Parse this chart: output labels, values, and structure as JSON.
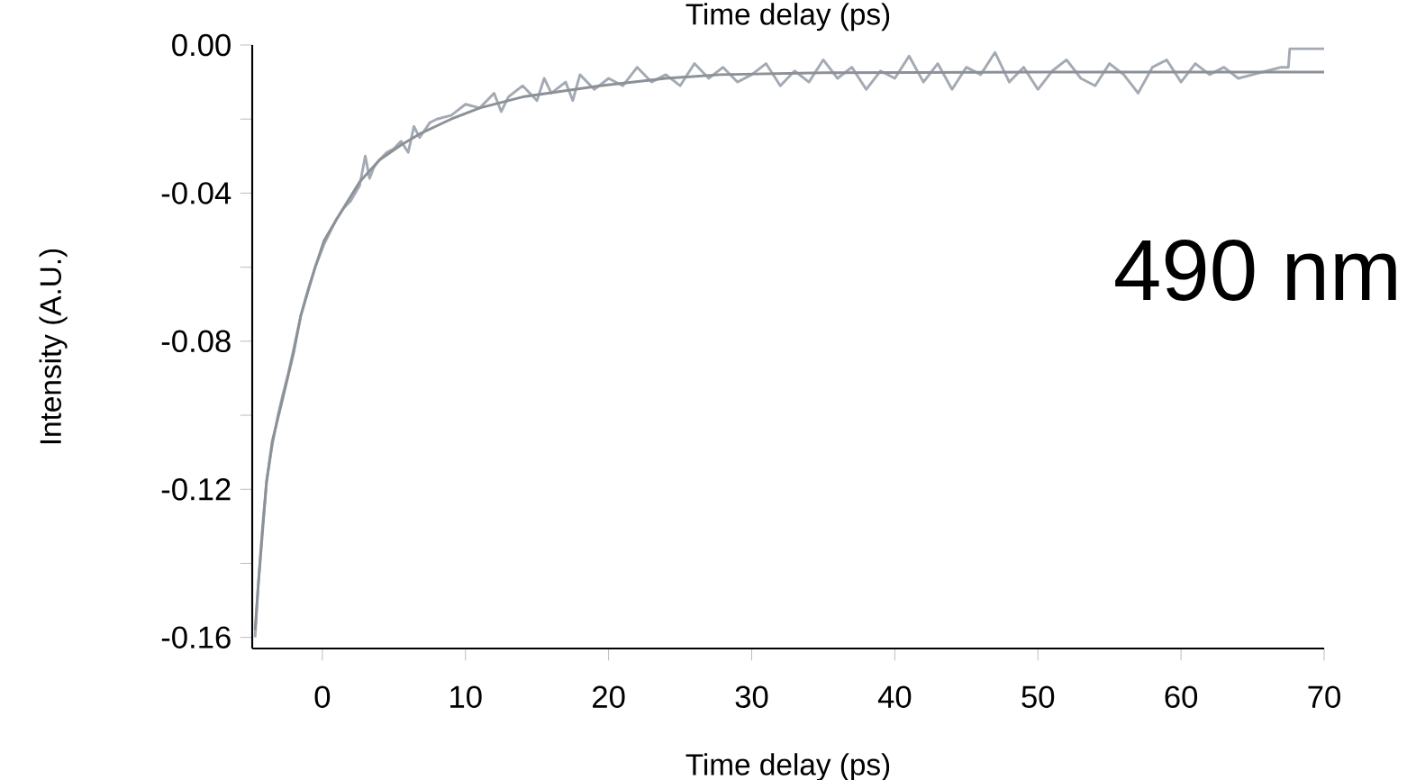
{
  "chart_data": {
    "type": "line",
    "xlabel": "Time delay (ps)",
    "ylabel": "Intensity (A.U.)",
    "annotations": [
      "Time delay (ps)",
      "490 nm"
    ],
    "xlim": [
      -4.9,
      70
    ],
    "ylim": [
      -0.163,
      0.0
    ],
    "xticks": [
      0,
      10,
      20,
      30,
      40,
      50,
      60,
      70
    ],
    "yticks": [
      {
        "value": -0.16,
        "label": "-0.16"
      },
      {
        "value": -0.14,
        "label": null
      },
      {
        "value": -0.12,
        "label": "-0.12"
      },
      {
        "value": -0.1,
        "label": null
      },
      {
        "value": -0.08,
        "label": "-0.08"
      },
      {
        "value": -0.06,
        "label": null
      },
      {
        "value": -0.04,
        "label": "-0.04"
      },
      {
        "value": -0.02,
        "label": null
      },
      {
        "value": 0.0,
        "label": "0.00"
      }
    ],
    "grid": false,
    "marker": "none",
    "line_style": "solid",
    "series": [
      {
        "color": "#a3aab3",
        "x": [
          -4.7,
          -4.5,
          -4.2,
          -3.9,
          -3.5,
          -3.1,
          -2.8,
          -2.4,
          -2,
          -1.5,
          -1,
          -0.5,
          0.1,
          0.6,
          1,
          1.5,
          2,
          2.6,
          3,
          3.3,
          3.6,
          4,
          4.5,
          5,
          5.5,
          6,
          6.4,
          6.8,
          7.5,
          8,
          9,
          10,
          11,
          12,
          12.5,
          13,
          14,
          15,
          15.5,
          16,
          17,
          17.5,
          18,
          19,
          20,
          21,
          22,
          23,
          24,
          25,
          26,
          27,
          28,
          29,
          30,
          31,
          32,
          33,
          34,
          35,
          36,
          37,
          38,
          39,
          40,
          41,
          42,
          43,
          44,
          45,
          46,
          47,
          48,
          49,
          50,
          51,
          52,
          53,
          54,
          55,
          56,
          57,
          58,
          59,
          60,
          61,
          62,
          63,
          64,
          65,
          66,
          67,
          67.5,
          67.6,
          70
        ],
        "values": [
          -0.16,
          -0.147,
          -0.131,
          -0.118,
          -0.108,
          -0.1,
          -0.095,
          -0.089,
          -0.082,
          -0.073,
          -0.066,
          -0.06,
          -0.054,
          -0.05,
          -0.047,
          -0.044,
          -0.042,
          -0.038,
          -0.03,
          -0.036,
          -0.033,
          -0.031,
          -0.029,
          -0.028,
          -0.026,
          -0.029,
          -0.022,
          -0.025,
          -0.021,
          -0.02,
          -0.019,
          -0.016,
          -0.017,
          -0.013,
          -0.018,
          -0.014,
          -0.011,
          -0.015,
          -0.009,
          -0.013,
          -0.01,
          -0.015,
          -0.008,
          -0.012,
          -0.009,
          -0.011,
          -0.006,
          -0.01,
          -0.008,
          -0.011,
          -0.005,
          -0.009,
          -0.006,
          -0.01,
          -0.008,
          -0.005,
          -0.011,
          -0.007,
          -0.01,
          -0.004,
          -0.009,
          -0.006,
          -0.012,
          -0.007,
          -0.009,
          -0.003,
          -0.01,
          -0.005,
          -0.012,
          -0.006,
          -0.008,
          -0.002,
          -0.01,
          -0.006,
          -0.012,
          -0.007,
          -0.004,
          -0.009,
          -0.011,
          -0.005,
          -0.008,
          -0.013,
          -0.006,
          -0.004,
          -0.01,
          -0.005,
          -0.008,
          -0.006,
          -0.009,
          -0.008,
          -0.007,
          -0.006,
          -0.006,
          -0.001,
          -0.001
        ]
      },
      {
        "color": "#8c9198",
        "x": [
          -4.7,
          -4.5,
          -3.9,
          -3.5,
          -2.8,
          -2,
          -1.5,
          -0.5,
          0.1,
          1,
          2.6,
          4,
          5.5,
          6.8,
          9,
          11,
          14,
          19.4,
          24,
          27.8,
          35,
          50,
          70
        ],
        "values": [
          -0.158,
          -0.147,
          -0.118,
          -0.107,
          -0.096,
          -0.083,
          -0.073,
          -0.06,
          -0.053,
          -0.047,
          -0.037,
          -0.031,
          -0.027,
          -0.024,
          -0.02,
          -0.017,
          -0.014,
          -0.011,
          -0.009,
          -0.008,
          -0.0075,
          -0.0073,
          -0.0073
        ]
      }
    ]
  }
}
